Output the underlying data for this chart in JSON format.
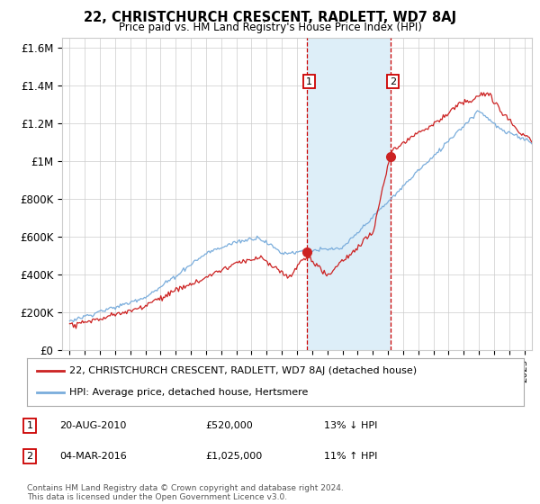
{
  "title": "22, CHRISTCHURCH CRESCENT, RADLETT, WD7 8AJ",
  "subtitle": "Price paid vs. HM Land Registry's House Price Index (HPI)",
  "ylabel_ticks": [
    "£0",
    "£200K",
    "£400K",
    "£600K",
    "£800K",
    "£1M",
    "£1.2M",
    "£1.4M",
    "£1.6M"
  ],
  "ytick_values": [
    0,
    200000,
    400000,
    600000,
    800000,
    1000000,
    1200000,
    1400000,
    1600000
  ],
  "ylim": [
    0,
    1650000
  ],
  "xlim_start": 1994.5,
  "xlim_end": 2025.5,
  "sale1_x": 2010.64,
  "sale1_y": 520000,
  "sale1_label": "1",
  "sale2_x": 2016.17,
  "sale2_y": 1025000,
  "sale2_label": "2",
  "vline1_x": 2010.64,
  "vline2_x": 2016.17,
  "shade_xmin": 2010.64,
  "shade_xmax": 2016.17,
  "shade_color": "#ddeef8",
  "vline_color": "#cc0000",
  "hpi_color": "#7aaddc",
  "price_color": "#cc2222",
  "legend_label1": "22, CHRISTCHURCH CRESCENT, RADLETT, WD7 8AJ (detached house)",
  "legend_label2": "HPI: Average price, detached house, Hertsmere",
  "annotation1_date": "20-AUG-2010",
  "annotation1_price": "£520,000",
  "annotation1_hpi": "13% ↓ HPI",
  "annotation2_date": "04-MAR-2016",
  "annotation2_price": "£1,025,000",
  "annotation2_hpi": "11% ↑ HPI",
  "footnote": "Contains HM Land Registry data © Crown copyright and database right 2024.\nThis data is licensed under the Open Government Licence v3.0.",
  "background_color": "#ffffff",
  "grid_color": "#cccccc"
}
